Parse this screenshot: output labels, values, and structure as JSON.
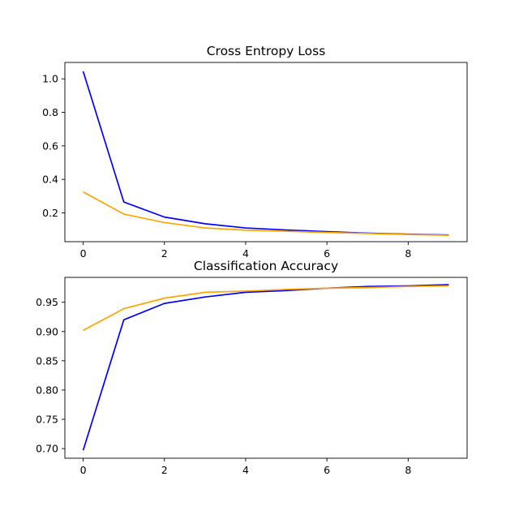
{
  "chart_data": [
    {
      "type": "line",
      "title": "Cross Entropy Loss",
      "xlabel": "",
      "ylabel": "",
      "x": [
        0,
        1,
        2,
        3,
        4,
        5,
        6,
        7,
        8,
        9
      ],
      "xlim": [
        -0.45,
        9.45
      ],
      "ylim": [
        0.028,
        1.098
      ],
      "xticks": [
        "0",
        "2",
        "4",
        "6",
        "8"
      ],
      "yticks": [
        "0.2",
        "0.4",
        "0.6",
        "0.8",
        "1.0"
      ],
      "grid": false,
      "series": [
        {
          "color": "#0000ff",
          "values": [
            1.045,
            0.265,
            0.175,
            0.135,
            0.11,
            0.098,
            0.088,
            0.079,
            0.073,
            0.068
          ]
        },
        {
          "color": "#ffa500",
          "values": [
            0.325,
            0.193,
            0.142,
            0.11,
            0.097,
            0.09,
            0.083,
            0.077,
            0.071,
            0.066
          ]
        }
      ]
    },
    {
      "type": "line",
      "title": "Classification Accuracy",
      "xlabel": "",
      "ylabel": "",
      "x": [
        0,
        1,
        2,
        3,
        4,
        5,
        6,
        7,
        8,
        9
      ],
      "xlim": [
        -0.45,
        9.45
      ],
      "ylim": [
        0.6835,
        0.9925
      ],
      "xticks": [
        "0",
        "2",
        "4",
        "6",
        "8"
      ],
      "yticks": [
        "0.70",
        "0.75",
        "0.80",
        "0.85",
        "0.90",
        "0.95"
      ],
      "grid": false,
      "series": [
        {
          "color": "#0000ff",
          "values": [
            0.697,
            0.92,
            0.948,
            0.959,
            0.967,
            0.97,
            0.974,
            0.977,
            0.978,
            0.98
          ]
        },
        {
          "color": "#ffa500",
          "values": [
            0.902,
            0.939,
            0.957,
            0.967,
            0.969,
            0.972,
            0.974,
            0.975,
            0.977,
            0.978
          ]
        }
      ]
    }
  ]
}
